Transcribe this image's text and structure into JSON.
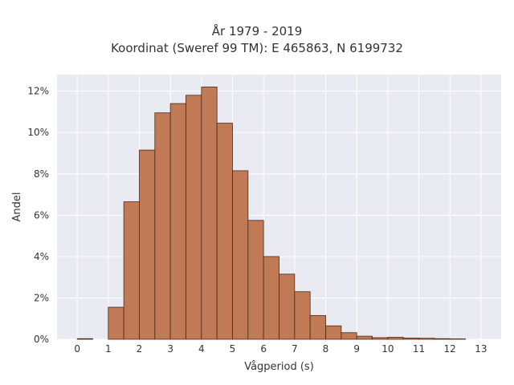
{
  "chart_data": {
    "type": "bar",
    "title": "År 1979 - 2019",
    "subtitle": "Koordinat (Sweref 99 TM): E 465863, N 6199732",
    "xlabel": "Vågperiod (s)",
    "ylabel": "Andel",
    "xlim": [
      -0.65,
      13.65
    ],
    "ylim": [
      0,
      12.8
    ],
    "x_ticks": [
      0,
      1,
      2,
      3,
      4,
      5,
      6,
      7,
      8,
      9,
      10,
      11,
      12,
      13
    ],
    "y_ticks": [
      0,
      2,
      4,
      6,
      8,
      10,
      12
    ],
    "y_tick_labels": [
      "0%",
      "2%",
      "4%",
      "6%",
      "8%",
      "10%",
      "12%"
    ],
    "grid": true,
    "bin_width": 0.5,
    "bin_starts": [
      0,
      0.5,
      1,
      1.5,
      2,
      2.5,
      3,
      3.5,
      4,
      4.5,
      5,
      5.5,
      6,
      6.5,
      7,
      7.5,
      8,
      8.5,
      9,
      9.5,
      10,
      10.5,
      11,
      11.5,
      12,
      12.5
    ],
    "values": [
      0.03,
      0.0,
      1.55,
      6.65,
      9.15,
      10.95,
      11.4,
      11.8,
      12.2,
      10.45,
      8.15,
      5.75,
      4.0,
      3.15,
      2.3,
      1.15,
      0.65,
      0.32,
      0.15,
      0.08,
      0.1,
      0.06,
      0.05,
      0.03,
      0.02,
      0.0
    ],
    "colors": {
      "bar_fill": "#c07a55",
      "bar_edge": "#4a2a18",
      "plot_background": "#eaeaf2",
      "grid": "#ffffff"
    }
  }
}
